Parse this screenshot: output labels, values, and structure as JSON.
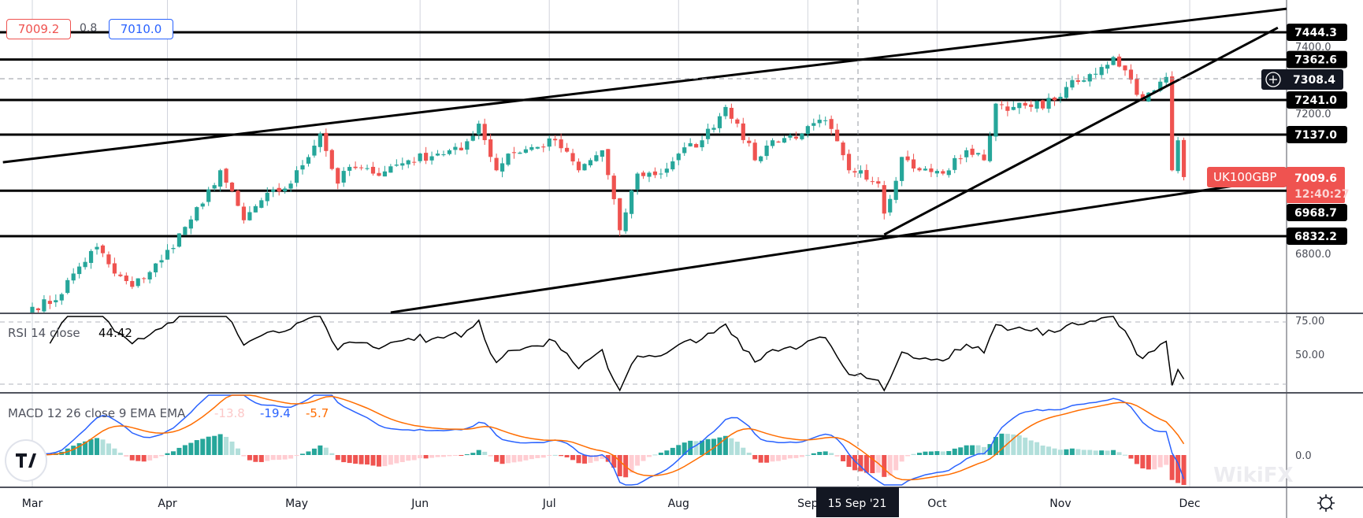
{
  "header": {
    "sell_price": "7009.2",
    "spread": "0.8",
    "buy_price": "7010.0"
  },
  "symbol": {
    "name": "UK100GBP",
    "last_price": "7009.6",
    "countdown": "12:40:27"
  },
  "crosshair": {
    "price": "7308.4",
    "date_label": "15 Sep '21"
  },
  "colors": {
    "up": "#26a69a",
    "down": "#ef5350",
    "line": "#000000",
    "macd": "#2962ff",
    "signal": "#ff6d00"
  },
  "rsi": {
    "label": "RSI 14 close",
    "value": "44.42",
    "ticks": [
      "75.00",
      "50.00"
    ]
  },
  "macd": {
    "label": "MACD 12 26 close 9 EMA EMA",
    "histogram": "-13.8",
    "macd_value": "-19.4",
    "signal_value": "-5.7",
    "ticks": [
      "0.0"
    ]
  },
  "chart_data": {
    "type": "candlestick",
    "symbol": "UK100GBP",
    "timeframe": "1D",
    "x_ticks": [
      "Mar",
      "Apr",
      "May",
      "Jun",
      "Jul",
      "Aug",
      "Sep",
      "Oct",
      "Nov",
      "Dec"
    ],
    "y_ticks": [
      "7400.0",
      "7200.0",
      "6800.0"
    ],
    "ylim": [
      6600,
      7540
    ],
    "close_anchors": [
      [
        "2021-03-01",
        6620
      ],
      [
        "2021-03-05",
        6640
      ],
      [
        "2021-03-10",
        6720
      ],
      [
        "2021-03-16",
        6800
      ],
      [
        "2021-03-19",
        6720
      ],
      [
        "2021-03-24",
        6680
      ],
      [
        "2021-03-31",
        6760
      ],
      [
        "2021-04-06",
        6860
      ],
      [
        "2021-04-09",
        6930
      ],
      [
        "2021-04-14",
        7030
      ],
      [
        "2021-04-20",
        6880
      ],
      [
        "2021-04-23",
        6940
      ],
      [
        "2021-04-30",
        6990
      ],
      [
        "2021-05-07",
        7140
      ],
      [
        "2021-05-12",
        6990
      ],
      [
        "2021-05-14",
        7040
      ],
      [
        "2021-05-20",
        7020
      ],
      [
        "2021-05-28",
        7060
      ],
      [
        "2021-06-04",
        7080
      ],
      [
        "2021-06-10",
        7090
      ],
      [
        "2021-06-15",
        7170
      ],
      [
        "2021-06-18",
        7030
      ],
      [
        "2021-06-22",
        7080
      ],
      [
        "2021-06-29",
        7100
      ],
      [
        "2021-07-02",
        7120
      ],
      [
        "2021-07-08",
        7030
      ],
      [
        "2021-07-14",
        7090
      ],
      [
        "2021-07-19",
        6850
      ],
      [
        "2021-07-22",
        7020
      ],
      [
        "2021-07-28",
        7020
      ],
      [
        "2021-08-02",
        7080
      ],
      [
        "2021-08-06",
        7120
      ],
      [
        "2021-08-12",
        7220
      ],
      [
        "2021-08-16",
        7170
      ],
      [
        "2021-08-19",
        7060
      ],
      [
        "2021-08-24",
        7120
      ],
      [
        "2021-08-31",
        7140
      ],
      [
        "2021-09-06",
        7180
      ],
      [
        "2021-09-10",
        7030
      ],
      [
        "2021-09-14",
        7030
      ],
      [
        "2021-09-17",
        6990
      ],
      [
        "2021-09-20",
        6900
      ],
      [
        "2021-09-23",
        7070
      ],
      [
        "2021-09-28",
        7030
      ],
      [
        "2021-10-04",
        7020
      ],
      [
        "2021-10-08",
        7090
      ],
      [
        "2021-10-13",
        7060
      ],
      [
        "2021-10-15",
        7230
      ],
      [
        "2021-10-20",
        7220
      ],
      [
        "2021-10-25",
        7220
      ],
      [
        "2021-10-29",
        7240
      ],
      [
        "2021-11-02",
        7280
      ],
      [
        "2021-11-05",
        7300
      ],
      [
        "2021-11-10",
        7340
      ],
      [
        "2021-11-12",
        7370
      ],
      [
        "2021-11-16",
        7330
      ],
      [
        "2021-11-19",
        7240
      ],
      [
        "2021-11-23",
        7270
      ],
      [
        "2021-11-25",
        7310
      ],
      [
        "2021-11-26",
        7030
      ],
      [
        "2021-11-29",
        7120
      ],
      [
        "2021-11-30",
        7009.6
      ]
    ],
    "horizontal_levels": [
      "7444.3",
      "7362.6",
      "7241.0",
      "7137.0",
      "6968.7",
      "6832.2"
    ],
    "trend_lines": [
      {
        "name": "upper-channel-line",
        "from": [
          "2021-02-22",
          7054
        ],
        "to": [
          "2021-12-30",
          7515
        ]
      },
      {
        "name": "rising-support-line",
        "from": [
          "2021-09-20",
          6837
        ],
        "to": [
          "2021-12-22",
          7458
        ]
      },
      {
        "name": "lower-channel-line",
        "from": [
          "2021-05-25",
          6603
        ],
        "to": [
          "2021-12-30",
          7007
        ]
      }
    ]
  },
  "watermark": "WikiFX"
}
